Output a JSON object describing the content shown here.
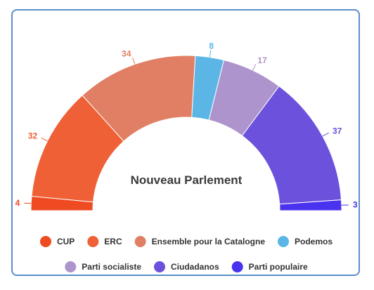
{
  "chart_data": {
    "type": "pie",
    "title": "Nouveau Parlement",
    "categories": [
      "CUP",
      "ERC",
      "Ensemble pour la Catalogne",
      "Podemos",
      "Parti socialiste",
      "Ciudadanos",
      "Parti populaire"
    ],
    "values": [
      4,
      32,
      34,
      8,
      17,
      37,
      3
    ],
    "labels": [
      "4",
      "32",
      "34",
      "8",
      "17",
      "37",
      "3"
    ],
    "colors": [
      "#ef4b22",
      "#ef6036",
      "#e07f64",
      "#5bb6e6",
      "#ae94cc",
      "#6c51dc",
      "#4a33ee"
    ],
    "legend_placement": "bottom"
  }
}
